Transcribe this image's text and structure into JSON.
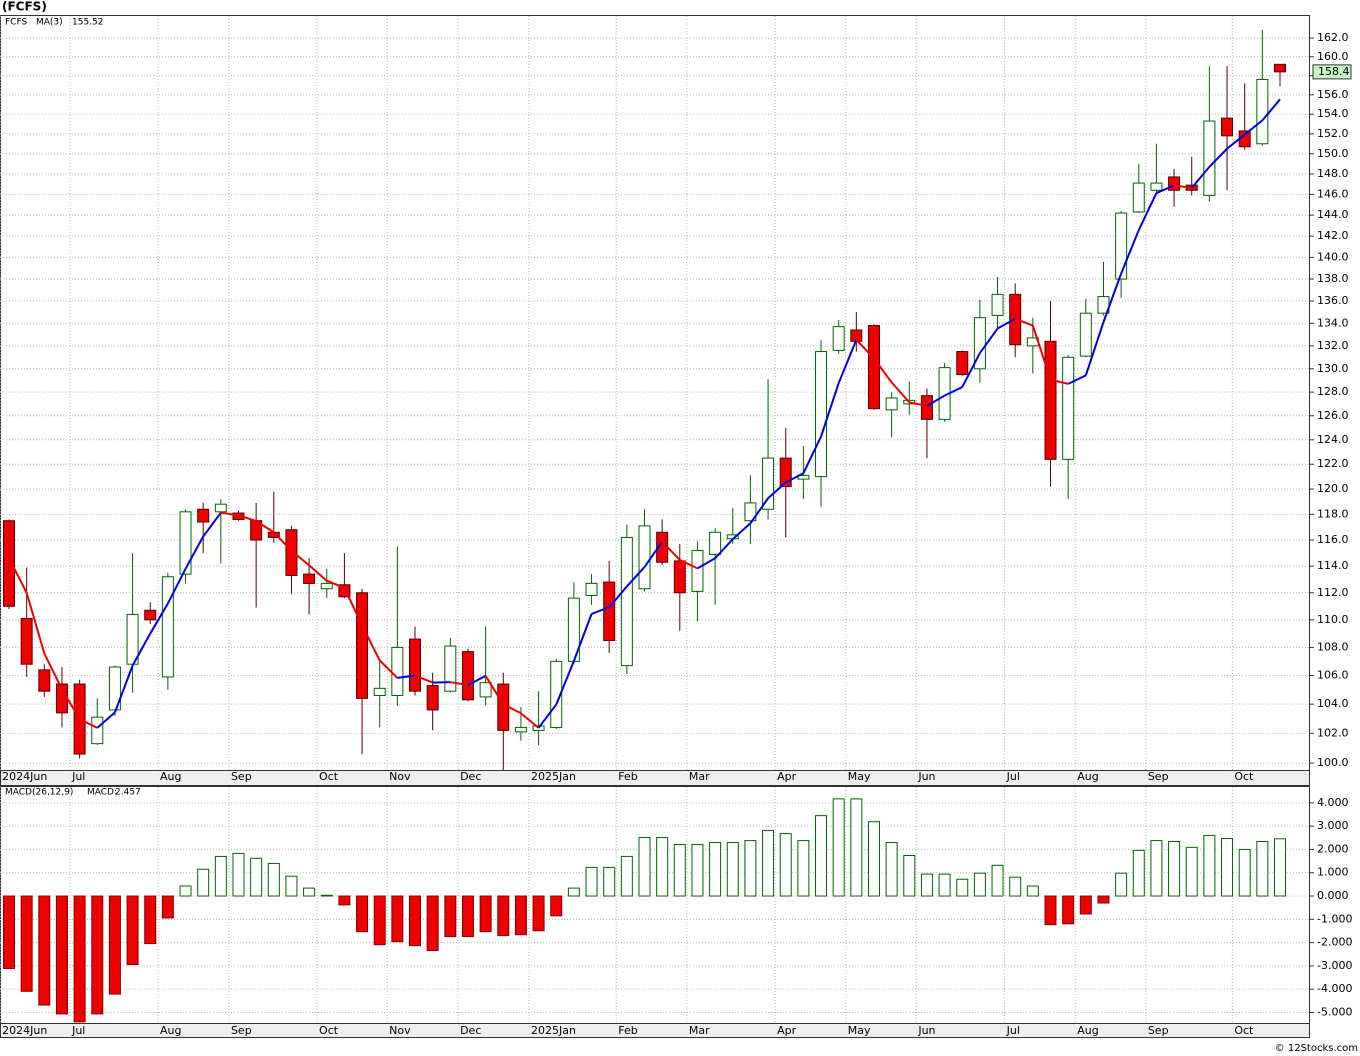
{
  "chart_data": [
    {
      "type": "candlestick",
      "title": "(FCFS)",
      "symbol": "FCFS",
      "log_scale": true,
      "grid": true,
      "up_color": "#ffffff",
      "up_stroke": "#006400",
      "down_color": "#ee0000",
      "down_stroke": "#550000",
      "last_label_color": "#c8f5c8",
      "xlim": [
        -0.51,
        73.7
      ],
      "ylim": [
        99.54,
        164.4
      ],
      "xticks": [
        {
          "value": -0.5,
          "label": "2024Jun"
        },
        {
          "value": 3.46,
          "label": "Jul"
        },
        {
          "value": 8.44,
          "label": "Aug"
        },
        {
          "value": 12.46,
          "label": "Sep"
        },
        {
          "value": 17.45,
          "label": "Oct"
        },
        {
          "value": 21.42,
          "label": "Nov"
        },
        {
          "value": 25.44,
          "label": "Dec"
        },
        {
          "value": 29.46,
          "label": "2025Jan"
        },
        {
          "value": 34.4,
          "label": "Feb"
        },
        {
          "value": 38.4,
          "label": "Mar"
        },
        {
          "value": 43.4,
          "label": "Apr"
        },
        {
          "value": 47.4,
          "label": "May"
        },
        {
          "value": 51.4,
          "label": "Jun"
        },
        {
          "value": 56.4,
          "label": "Jul"
        },
        {
          "value": 60.4,
          "label": "Aug"
        },
        {
          "value": 64.4,
          "label": "Sep"
        },
        {
          "value": 69.3,
          "label": "Oct"
        }
      ],
      "yticks": [
        {
          "value": 100,
          "label": "100.0"
        },
        {
          "value": 102,
          "label": "102.0"
        },
        {
          "value": 104,
          "label": "104.0"
        },
        {
          "value": 106,
          "label": "106.0"
        },
        {
          "value": 108,
          "label": "108.0"
        },
        {
          "value": 110,
          "label": "110.0"
        },
        {
          "value": 112,
          "label": "112.0"
        },
        {
          "value": 114,
          "label": "114.0"
        },
        {
          "value": 116,
          "label": "116.0"
        },
        {
          "value": 118,
          "label": "118.0"
        },
        {
          "value": 120,
          "label": "120.0"
        },
        {
          "value": 122,
          "label": "122.0"
        },
        {
          "value": 124,
          "label": "124.0"
        },
        {
          "value": 126,
          "label": "126.0"
        },
        {
          "value": 128,
          "label": "128.0"
        },
        {
          "value": 130,
          "label": "130.0"
        },
        {
          "value": 132,
          "label": "132.0"
        },
        {
          "value": 134,
          "label": "134.0"
        },
        {
          "value": 136,
          "label": "136.0"
        },
        {
          "value": 138,
          "label": "138.0"
        },
        {
          "value": 140,
          "label": "140.0"
        },
        {
          "value": 142,
          "label": "142.0"
        },
        {
          "value": 144,
          "label": "144.0"
        },
        {
          "value": 146,
          "label": "146.0"
        },
        {
          "value": 148,
          "label": "148.0"
        },
        {
          "value": 150,
          "label": "150.0"
        },
        {
          "value": 152,
          "label": "152.0"
        },
        {
          "value": 154,
          "label": "154.0"
        },
        {
          "value": 156,
          "label": "156.0"
        },
        {
          "value": 158,
          "label": "158.0"
        },
        {
          "value": 160,
          "label": "160.0"
        },
        {
          "value": 162,
          "label": "162.0"
        }
      ],
      "open": [
        117.5,
        110.1,
        106.4,
        105.4,
        105.4,
        101.3,
        103.6,
        106.8,
        110.7,
        105.9,
        113.4,
        118.4,
        118.2,
        118.1,
        117.5,
        116.6,
        116.8,
        113.4,
        112.3,
        112.6,
        112.0,
        104.6,
        104.6,
        108.6,
        105.3,
        104.9,
        107.7,
        104.5,
        105.4,
        102.1,
        102.2,
        102.4,
        107.0,
        111.8,
        112.8,
        106.7,
        112.3,
        116.6,
        114.4,
        112.1,
        114.9,
        116.1,
        117.5,
        118.4,
        122.5,
        120.8,
        121.0,
        131.6,
        133.4,
        133.8,
        126.5,
        127.0,
        127.7,
        125.7,
        131.5,
        130.0,
        134.7,
        136.6,
        132.0,
        132.4,
        122.4,
        131.1,
        134.9,
        138.0,
        144.3,
        146.4,
        147.7,
        146.9,
        145.9,
        153.6,
        152.3,
        151.0,
        159.2
      ],
      "high": [
        117.6,
        113.9,
        106.8,
        106.6,
        105.7,
        104.4,
        106.7,
        115.0,
        111.3,
        113.5,
        118.4,
        118.9,
        119.2,
        118.3,
        118.9,
        119.8,
        117.1,
        114.6,
        113.8,
        115.0,
        112.3,
        107.2,
        115.5,
        109.5,
        106.2,
        108.7,
        107.9,
        109.5,
        106.2,
        103.8,
        104.9,
        107.2,
        112.8,
        113.4,
        114.4,
        117.2,
        118.4,
        117.6,
        115.7,
        115.9,
        116.9,
        118.5,
        121.1,
        129.1,
        125.0,
        123.5,
        132.5,
        134.3,
        135.0,
        133.9,
        128.0,
        128.9,
        128.3,
        130.5,
        131.6,
        136.1,
        138.2,
        137.6,
        134.5,
        136.0,
        131.2,
        136.2,
        139.6,
        144.4,
        149.0,
        151.0,
        148.5,
        149.7,
        159.0,
        159.0,
        157.2,
        162.9,
        159.2
      ],
      "low": [
        110.8,
        105.9,
        104.5,
        102.4,
        100.3,
        101.2,
        103.2,
        104.8,
        109.7,
        105.0,
        112.7,
        115.0,
        114.2,
        117.5,
        110.9,
        115.8,
        111.9,
        110.4,
        111.6,
        111.6,
        100.6,
        102.4,
        103.9,
        104.6,
        102.2,
        104.8,
        104.2,
        103.9,
        99.5,
        101.5,
        101.2,
        102.3,
        106.8,
        111.1,
        107.6,
        106.1,
        112.1,
        114.1,
        109.2,
        109.9,
        111.1,
        115.7,
        115.7,
        117.6,
        116.2,
        119.2,
        118.6,
        131.3,
        131.5,
        126.5,
        124.2,
        126.1,
        122.5,
        125.5,
        129.4,
        128.8,
        133.6,
        131.0,
        129.6,
        120.2,
        119.2,
        131.0,
        134.7,
        136.3,
        144.2,
        146.1,
        144.8,
        145.9,
        145.3,
        146.4,
        150.4,
        150.8,
        156.9
      ],
      "close": [
        111.0,
        106.8,
        104.9,
        103.4,
        100.6,
        103.1,
        106.6,
        110.4,
        110.0,
        113.2,
        118.2,
        117.4,
        118.8,
        117.6,
        116.0,
        116.2,
        113.3,
        112.7,
        112.7,
        111.7,
        104.4,
        105.1,
        108.0,
        104.9,
        103.6,
        108.1,
        104.3,
        105.5,
        102.2,
        102.4,
        102.5,
        107.0,
        111.6,
        112.7,
        108.5,
        116.2,
        117.1,
        114.3,
        112.0,
        115.2,
        116.6,
        116.4,
        118.9,
        122.5,
        120.2,
        121.1,
        131.5,
        133.7,
        132.4,
        126.6,
        127.5,
        127.3,
        125.7,
        130.1,
        129.5,
        134.5,
        136.6,
        132.1,
        132.7,
        122.4,
        131.0,
        134.9,
        136.4,
        144.2,
        147.1,
        147.1,
        146.4,
        146.4,
        153.3,
        151.8,
        150.7,
        157.6,
        158.4
      ],
      "ma": {
        "name": "MA(3)",
        "legend_color": "#0000aa",
        "up_color": "#0000dd",
        "down_color": "#ee0000",
        "values": [
          114.6,
          112.0,
          107.57,
          105.03,
          102.97,
          102.37,
          103.43,
          106.7,
          109.0,
          111.2,
          113.8,
          116.27,
          118.13,
          117.93,
          117.47,
          116.6,
          115.17,
          114.07,
          112.9,
          112.37,
          109.6,
          107.07,
          105.83,
          106.0,
          105.5,
          105.53,
          105.33,
          105.97,
          104.0,
          103.37,
          102.37,
          103.97,
          107.03,
          110.43,
          110.93,
          112.47,
          113.93,
          115.87,
          114.47,
          113.83,
          114.6,
          116.07,
          117.3,
          119.27,
          120.53,
          121.27,
          124.27,
          128.77,
          132.53,
          130.9,
          128.83,
          127.13,
          126.83,
          127.7,
          128.43,
          131.37,
          133.53,
          134.4,
          133.8,
          129.07,
          128.7,
          129.43,
          134.1,
          138.5,
          142.57,
          146.13,
          146.87,
          146.63,
          148.7,
          150.5,
          151.93,
          153.37,
          155.52
        ]
      }
    },
    {
      "type": "bar",
      "title": "MACD(26,12,9)",
      "legend_label": "MACD:",
      "legend_color": "#0000aa",
      "grid": true,
      "pos_fill": "#ffffff",
      "pos_stroke": "#006400",
      "neg_fill": "#ee0000",
      "neg_stroke": "#880000",
      "xlim": [
        -0.51,
        73.7
      ],
      "ylim": [
        -5.45,
        4.68
      ],
      "xticks": [
        {
          "value": -0.5,
          "label": "2024Jun"
        },
        {
          "value": 3.46,
          "label": "Jul"
        },
        {
          "value": 8.44,
          "label": "Aug"
        },
        {
          "value": 12.46,
          "label": "Sep"
        },
        {
          "value": 17.45,
          "label": "Oct"
        },
        {
          "value": 21.42,
          "label": "Nov"
        },
        {
          "value": 25.44,
          "label": "Dec"
        },
        {
          "value": 29.46,
          "label": "2025Jan"
        },
        {
          "value": 34.4,
          "label": "Feb"
        },
        {
          "value": 38.4,
          "label": "Mar"
        },
        {
          "value": 43.4,
          "label": "Apr"
        },
        {
          "value": 47.4,
          "label": "May"
        },
        {
          "value": 51.4,
          "label": "Jun"
        },
        {
          "value": 56.4,
          "label": "Jul"
        },
        {
          "value": 60.4,
          "label": "Aug"
        },
        {
          "value": 64.4,
          "label": "Sep"
        },
        {
          "value": 69.3,
          "label": "Oct"
        }
      ],
      "yticks": [
        {
          "value": 4,
          "label": "4.000"
        },
        {
          "value": 3,
          "label": "3.000"
        },
        {
          "value": 2,
          "label": "2.000"
        },
        {
          "value": 1,
          "label": "1.000"
        },
        {
          "value": 0,
          "label": "0.000"
        },
        {
          "value": -1,
          "label": "-1.000"
        },
        {
          "value": -2,
          "label": "-2.000"
        },
        {
          "value": -3,
          "label": "-3.000"
        },
        {
          "value": -4,
          "label": "-4.000"
        },
        {
          "value": -5,
          "label": "-5.000"
        }
      ],
      "values": [
        -3.11,
        -4.09,
        -4.68,
        -5.06,
        -5.4,
        -5.06,
        -4.21,
        -2.94,
        -2.04,
        -0.94,
        0.43,
        1.15,
        1.7,
        1.83,
        1.62,
        1.4,
        0.85,
        0.34,
        0.03,
        -0.38,
        -1.53,
        -2.09,
        -1.96,
        -2.13,
        -2.34,
        -1.74,
        -1.74,
        -1.53,
        -1.7,
        -1.66,
        -1.49,
        -0.85,
        0.34,
        1.23,
        1.23,
        1.7,
        2.51,
        2.51,
        2.21,
        2.21,
        2.3,
        2.3,
        2.38,
        2.81,
        2.68,
        2.38,
        3.45,
        4.17,
        4.17,
        3.19,
        2.3,
        1.74,
        0.94,
        0.94,
        0.72,
        0.98,
        1.32,
        0.81,
        0.43,
        -1.23,
        -1.19,
        -0.77,
        -0.3,
        0.98,
        1.96,
        2.38,
        2.34,
        2.09,
        2.6,
        2.47,
        2.0,
        2.34,
        2.457
      ]
    }
  ],
  "footer": "© 12Stocks.com"
}
